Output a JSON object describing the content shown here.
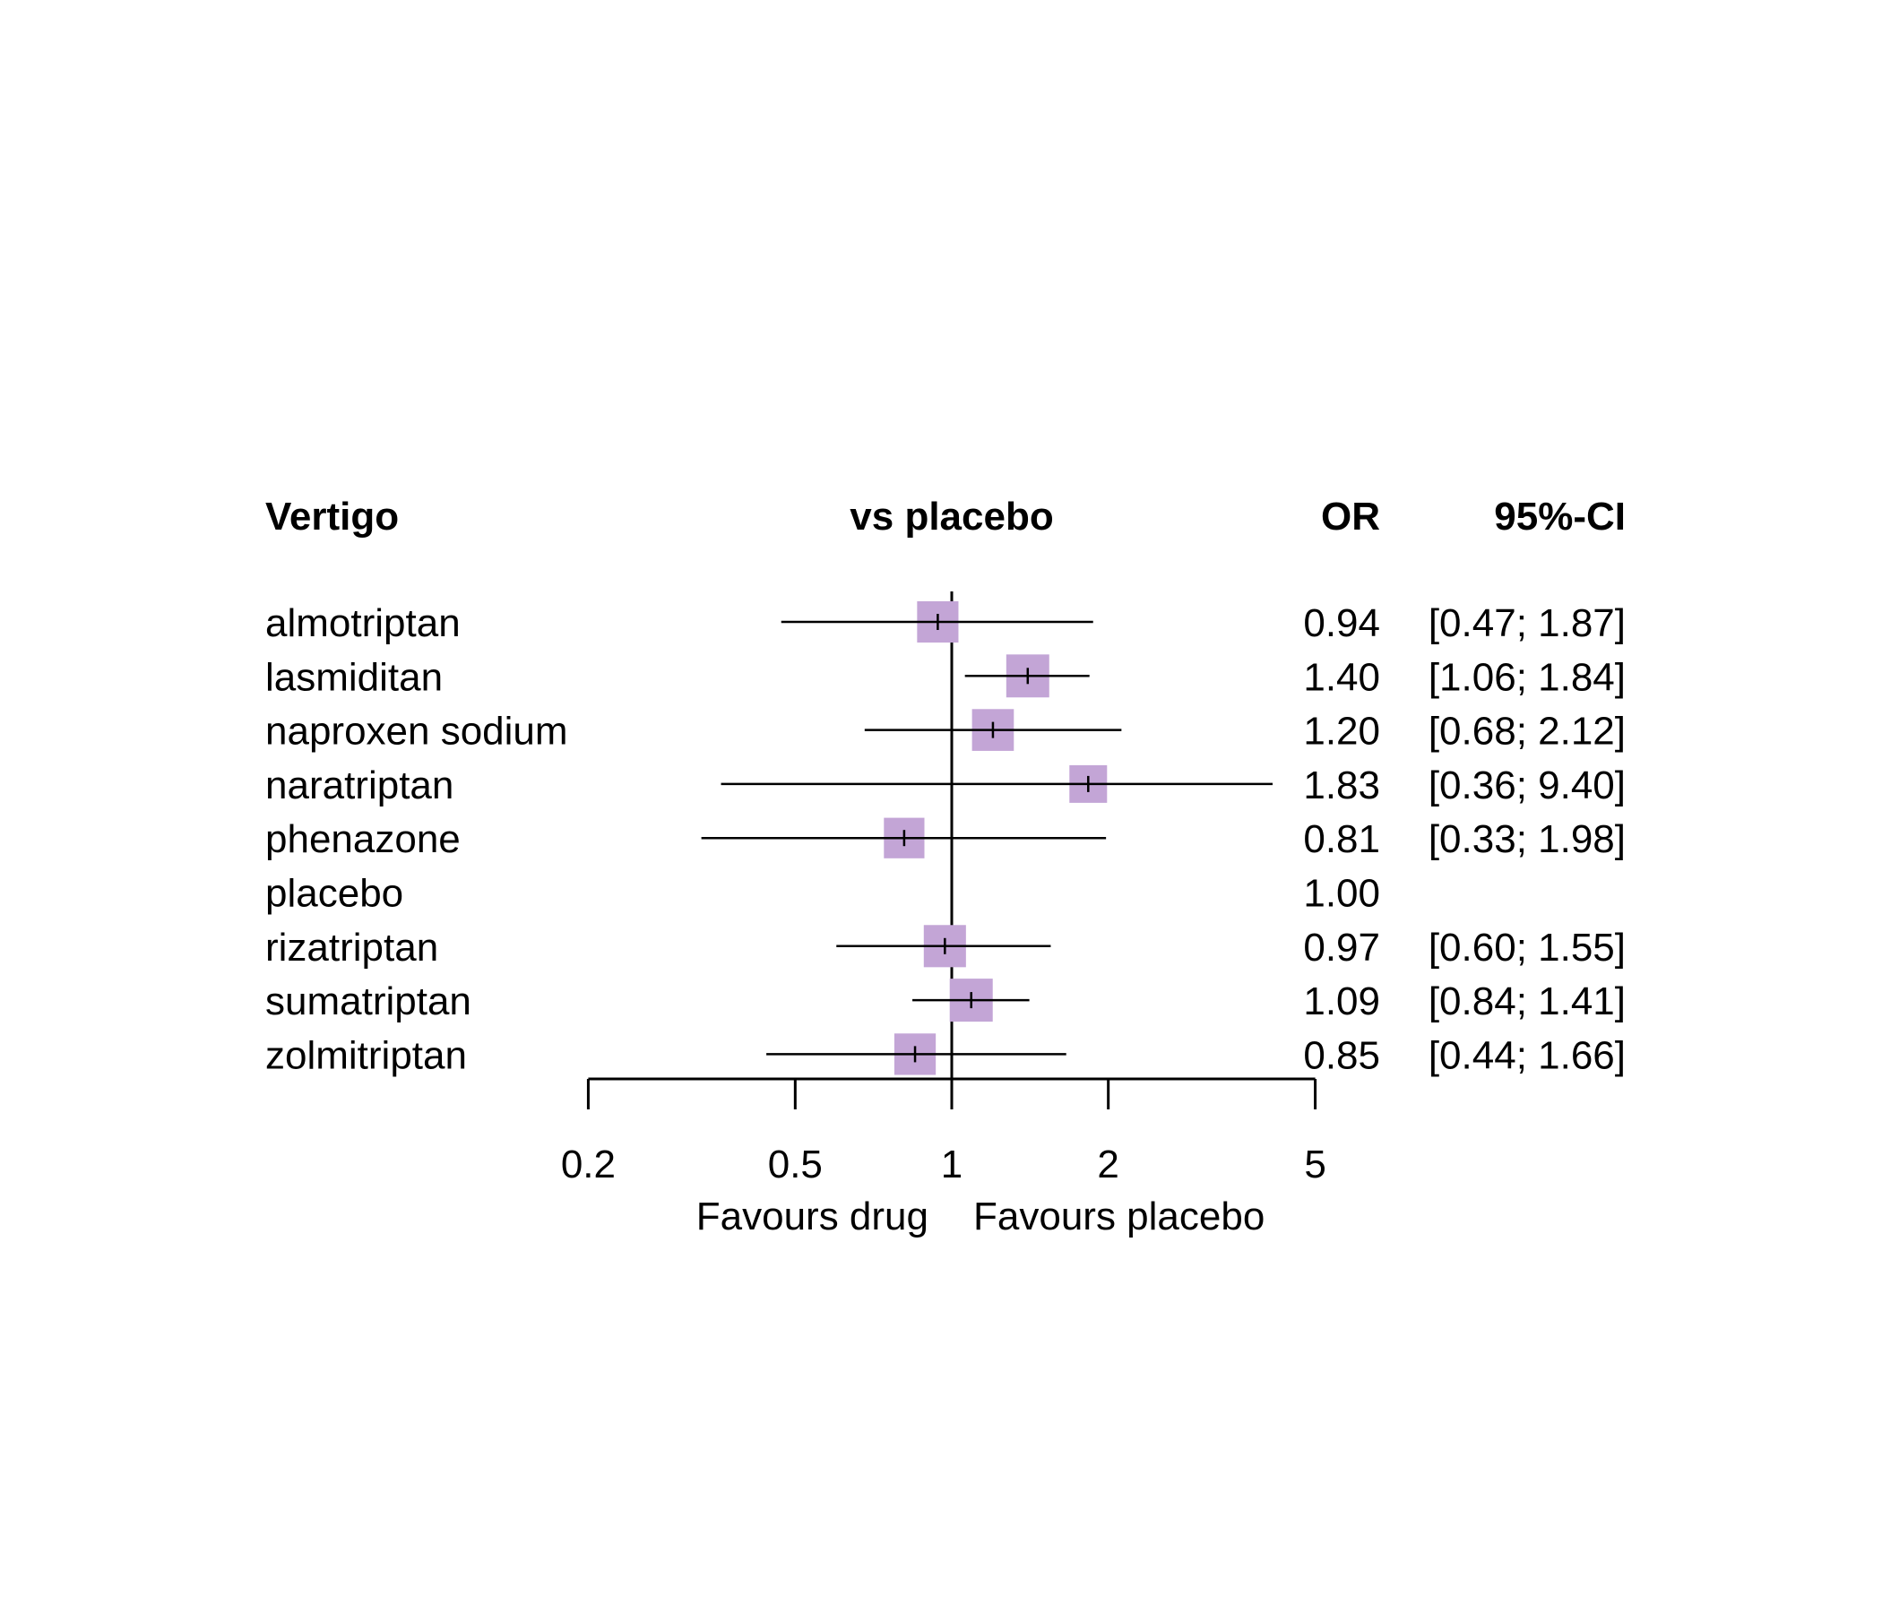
{
  "chart_data": {
    "type": "forest",
    "header": {
      "label": "Vertigo",
      "middle": "vs placebo",
      "estimate": "OR",
      "ci": "95%-CI"
    },
    "x_scale": "log",
    "xlim": [
      0.2,
      5
    ],
    "x_ticks": [
      0.2,
      0.5,
      1,
      2,
      5
    ],
    "x_tick_labels": [
      "0.2",
      "0.5",
      "1",
      "2",
      "5"
    ],
    "reference_line": 1,
    "favours_left": "Favours drug",
    "favours_right": "Favours placebo",
    "marker_color": "#c3a5d6",
    "rows": [
      {
        "label": "almotriptan",
        "or": 0.94,
        "lower": 0.47,
        "upper": 1.87,
        "or_text": "0.94",
        "ci_text": "[0.47; 1.87]"
      },
      {
        "label": "lasmiditan",
        "or": 1.4,
        "lower": 1.06,
        "upper": 1.84,
        "or_text": "1.40",
        "ci_text": "[1.06; 1.84]"
      },
      {
        "label": "naproxen sodium",
        "or": 1.2,
        "lower": 0.68,
        "upper": 2.12,
        "or_text": "1.20",
        "ci_text": "[0.68; 2.12]"
      },
      {
        "label": "naratriptan",
        "or": 1.83,
        "lower": 0.36,
        "upper": 9.4,
        "or_text": "1.83",
        "ci_text": "[0.36; 9.40]"
      },
      {
        "label": "phenazone",
        "or": 0.81,
        "lower": 0.33,
        "upper": 1.98,
        "or_text": "0.81",
        "ci_text": "[0.33; 1.98]"
      },
      {
        "label": "placebo",
        "or": 1.0,
        "lower": null,
        "upper": null,
        "or_text": "1.00",
        "ci_text": ""
      },
      {
        "label": "rizatriptan",
        "or": 0.97,
        "lower": 0.6,
        "upper": 1.55,
        "or_text": "0.97",
        "ci_text": "[0.60; 1.55]"
      },
      {
        "label": "sumatriptan",
        "or": 1.09,
        "lower": 0.84,
        "upper": 1.41,
        "or_text": "1.09",
        "ci_text": "[0.84; 1.41]"
      },
      {
        "label": "zolmitriptan",
        "or": 0.85,
        "lower": 0.44,
        "upper": 1.66,
        "or_text": "0.85",
        "ci_text": "[0.44; 1.66]"
      }
    ]
  }
}
